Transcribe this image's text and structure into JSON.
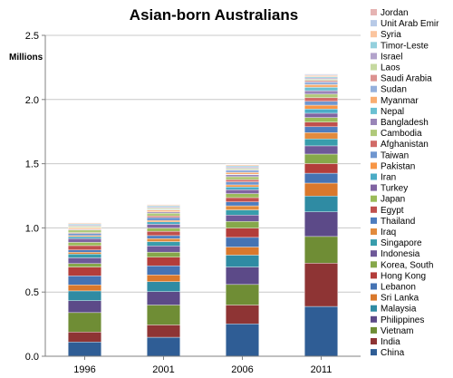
{
  "chart_data": {
    "type": "bar",
    "stacked": true,
    "title": "Asian-born Australians",
    "ylabel": "Millions",
    "xlabel": "",
    "ylim": [
      0,
      2.5
    ],
    "y_ticks": [
      "0.0",
      "0.5",
      "1.0",
      "1.5",
      "2.0",
      "2.5"
    ],
    "grid": "horizontal",
    "legend_position": "right",
    "categories": [
      "1996",
      "2001",
      "2006",
      "2011"
    ],
    "series": [
      {
        "name": "China",
        "color": "#2f5d95",
        "values": [
          0.111,
          0.148,
          0.252,
          0.388
        ]
      },
      {
        "name": "India",
        "color": "#8e3434",
        "values": [
          0.078,
          0.096,
          0.147,
          0.337
        ]
      },
      {
        "name": "Vietnam",
        "color": "#6f8d35",
        "values": [
          0.151,
          0.155,
          0.16,
          0.208
        ]
      },
      {
        "name": "Philippines",
        "color": "#5c4a88",
        "values": [
          0.093,
          0.104,
          0.136,
          0.192
        ]
      },
      {
        "name": "Malaysia",
        "color": "#2f8ba3",
        "values": [
          0.076,
          0.078,
          0.093,
          0.123
        ]
      },
      {
        "name": "Sri Lanka",
        "color": "#d9782c",
        "values": [
          0.047,
          0.053,
          0.063,
          0.101
        ]
      },
      {
        "name": "Lebanon",
        "color": "#4573b3",
        "values": [
          0.07,
          0.071,
          0.075,
          0.077
        ]
      },
      {
        "name": "Hong Kong",
        "color": "#b33d3a",
        "values": [
          0.069,
          0.067,
          0.072,
          0.075
        ]
      },
      {
        "name": "Korea, South",
        "color": "#86a84a",
        "values": [
          0.027,
          0.039,
          0.052,
          0.074
        ]
      },
      {
        "name": "Indonesia",
        "color": "#6e5898",
        "values": [
          0.045,
          0.048,
          0.05,
          0.064
        ]
      },
      {
        "name": "Singapore",
        "color": "#389dac",
        "values": [
          0.029,
          0.034,
          0.04,
          0.054
        ]
      },
      {
        "name": "Iraq",
        "color": "#e28b3d",
        "values": [
          0.014,
          0.024,
          0.032,
          0.049
        ]
      },
      {
        "name": "Thailand",
        "color": "#4d7dbf",
        "values": [
          0.018,
          0.023,
          0.03,
          0.046
        ]
      },
      {
        "name": "Egypt",
        "color": "#c0504d",
        "values": [
          0.034,
          0.033,
          0.034,
          0.036
        ]
      },
      {
        "name": "Japan",
        "color": "#9bbb59",
        "values": [
          0.025,
          0.026,
          0.031,
          0.036
        ]
      },
      {
        "name": "Turkey",
        "color": "#8064a2",
        "values": [
          0.029,
          0.029,
          0.03,
          0.033
        ]
      },
      {
        "name": "Iran",
        "color": "#4bacc6",
        "values": [
          0.016,
          0.019,
          0.022,
          0.033
        ]
      },
      {
        "name": "Pakistan",
        "color": "#f79646",
        "values": [
          0.008,
          0.011,
          0.016,
          0.03
        ]
      },
      {
        "name": "Taiwan",
        "color": "#6f96cf",
        "values": [
          0.017,
          0.023,
          0.024,
          0.03
        ]
      },
      {
        "name": "Afghanistan",
        "color": "#d16a67",
        "values": [
          0.006,
          0.012,
          0.016,
          0.028
        ]
      },
      {
        "name": "Cambodia",
        "color": "#b0c97a",
        "values": [
          0.021,
          0.022,
          0.024,
          0.028
        ]
      },
      {
        "name": "Bangladesh",
        "color": "#9985b8",
        "values": [
          0.005,
          0.009,
          0.015,
          0.027
        ]
      },
      {
        "name": "Nepal",
        "color": "#6ac0d2",
        "values": [
          0.001,
          0.002,
          0.004,
          0.026
        ]
      },
      {
        "name": "Myanmar",
        "color": "#f9ad71",
        "values": [
          0.01,
          0.012,
          0.014,
          0.021
        ]
      },
      {
        "name": "Sudan",
        "color": "#95b0dc",
        "values": [
          0.002,
          0.005,
          0.019,
          0.021
        ]
      },
      {
        "name": "Saudi Arabia",
        "color": "#dc9290",
        "values": [
          0.002,
          0.002,
          0.004,
          0.011
        ]
      },
      {
        "name": "Laos",
        "color": "#c6d9a0",
        "values": [
          0.01,
          0.01,
          0.01,
          0.01
        ]
      },
      {
        "name": "Israel",
        "color": "#b3a3cb",
        "values": [
          0.008,
          0.008,
          0.009,
          0.01
        ]
      },
      {
        "name": "Timor-Leste",
        "color": "#94d0dd",
        "values": [
          0.008,
          0.009,
          0.009,
          0.01
        ]
      },
      {
        "name": "Syria",
        "color": "#fbc59f",
        "values": [
          0.006,
          0.007,
          0.008,
          0.009
        ]
      },
      {
        "name": "Unit Arab Emir",
        "color": "#b8cae7",
        "values": [
          0.001,
          0.002,
          0.003,
          0.008
        ]
      },
      {
        "name": "Jordan",
        "color": "#e6b4b3",
        "values": [
          0.002,
          0.003,
          0.003,
          0.004
        ]
      }
    ]
  }
}
